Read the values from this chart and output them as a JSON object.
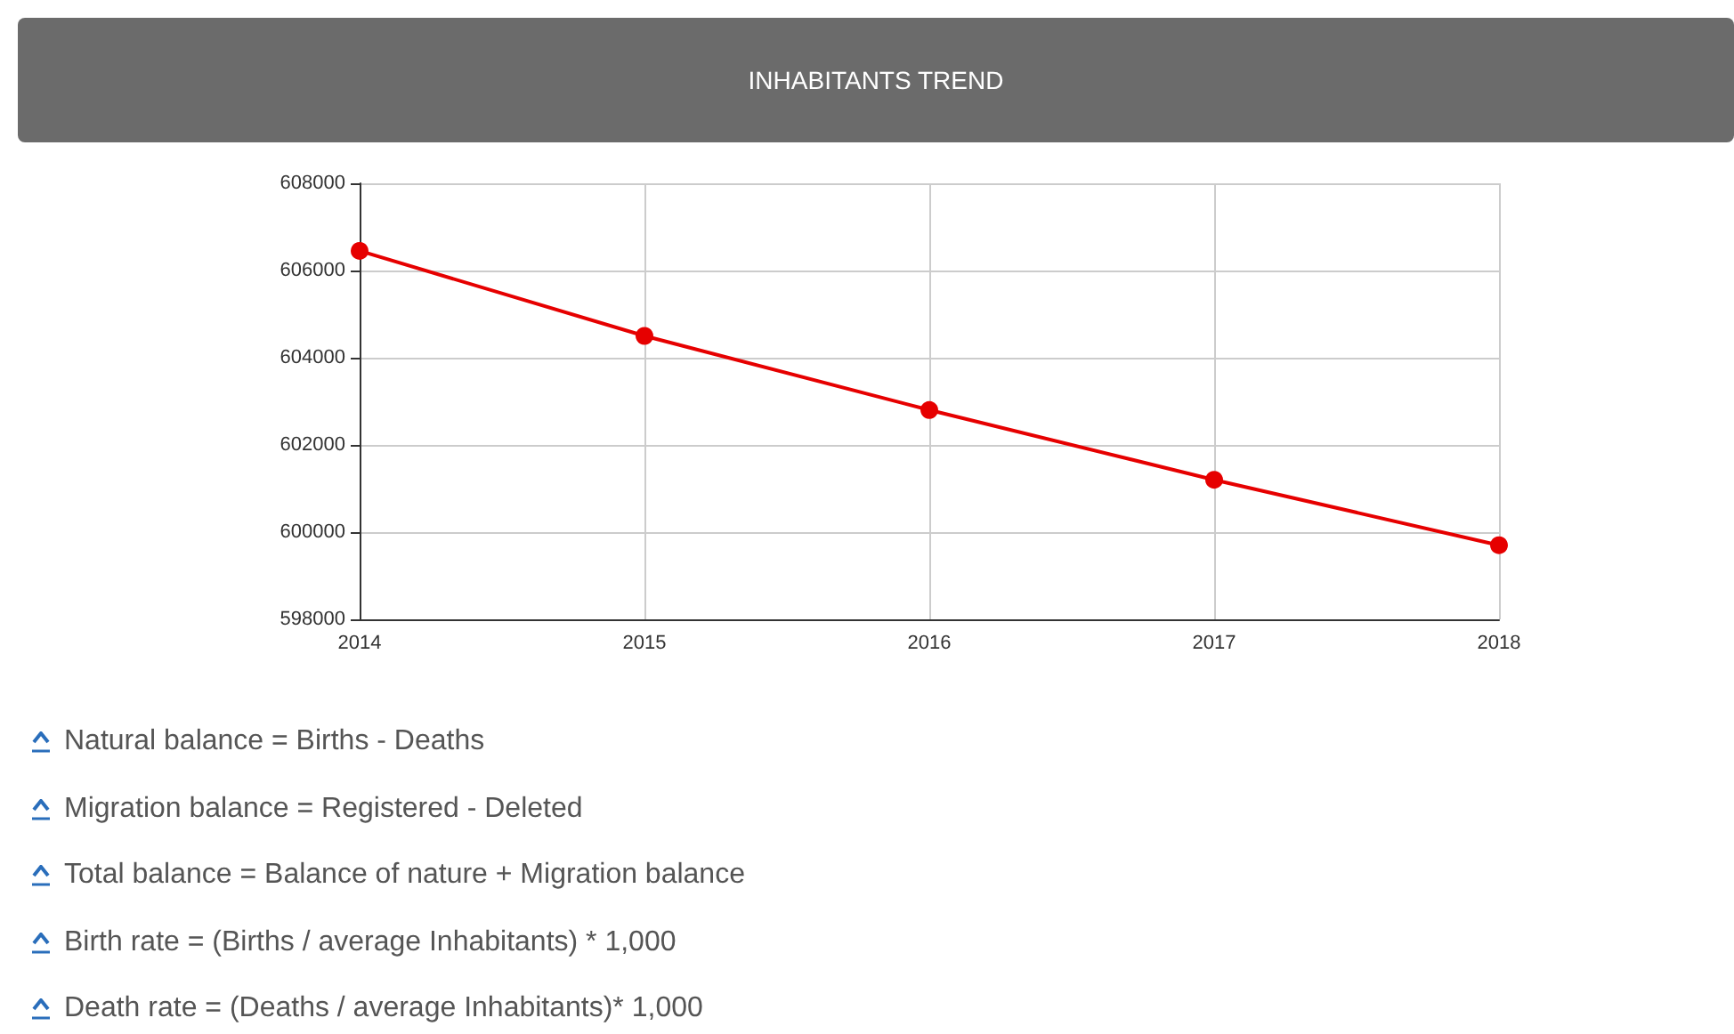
{
  "chart_data": {
    "type": "line",
    "title": "INHABITANTS TREND",
    "categories": [
      "2014",
      "2015",
      "2016",
      "2017",
      "2018"
    ],
    "series": [
      {
        "color": "#e60000",
        "values": [
          606450,
          604500,
          602800,
          601200,
          599700
        ]
      }
    ],
    "ylim": [
      598000,
      608000
    ],
    "yticks": [
      598000,
      600000,
      602000,
      604000,
      606000,
      608000
    ],
    "grid": true,
    "marker": "circle",
    "line_style": "solid",
    "annotations": [
      "Natural balance = Births - Deaths",
      "Migration balance = Registered - Deleted",
      "Total balance = Balance of nature + Migration balance",
      "Birth rate = (Births / average Inhabitants) * 1,000",
      "Death rate = (Deaths / average Inhabitants)* 1,000"
    ]
  }
}
